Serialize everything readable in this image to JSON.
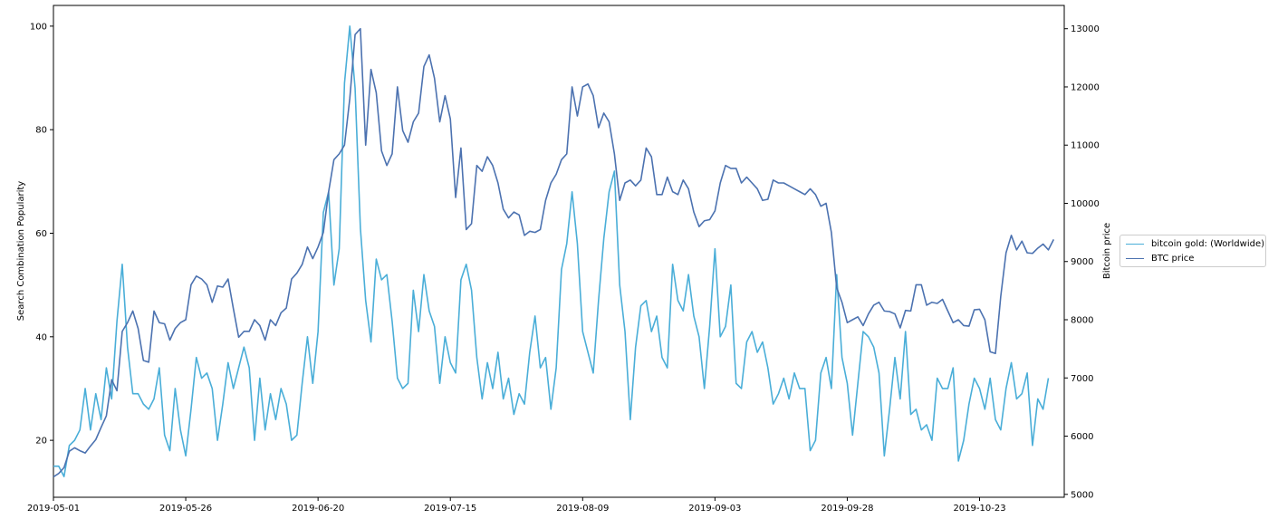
{
  "chart_data": {
    "type": "line",
    "title": "",
    "xlabel": "",
    "ylabel": "Search Combination Popularity",
    "y2label": "Bitcoin price",
    "x_range": [
      "2019-05-01",
      "2019-11-08"
    ],
    "ylim": [
      9,
      104
    ],
    "y2lim": [
      4950,
      13400
    ],
    "x_ticks": [
      "2019-05-01",
      "2019-05-26",
      "2019-06-20",
      "2019-07-15",
      "2019-08-09",
      "2019-09-03",
      "2019-09-28",
      "2019-10-23"
    ],
    "y_ticks": [
      20,
      40,
      60,
      80,
      100
    ],
    "y2_ticks": [
      5000,
      6000,
      7000,
      8000,
      9000,
      10000,
      11000,
      12000,
      13000
    ],
    "legend_placement": "right",
    "grid": false,
    "series": [
      {
        "name": "bitcoin gold: (Worldwide)",
        "axis": "left",
        "color": "#4aaed8",
        "values": [
          15,
          15,
          13,
          19,
          20,
          22,
          30,
          22,
          29,
          24,
          34,
          28,
          43,
          54,
          38,
          29,
          29,
          27,
          26,
          28,
          34,
          21,
          18,
          30,
          22,
          17,
          26,
          36,
          32,
          33,
          30,
          20,
          27,
          35,
          30,
          34,
          38,
          34,
          20,
          32,
          22,
          29,
          24,
          30,
          27,
          20,
          21,
          31,
          40,
          31,
          41,
          64,
          68,
          50,
          57,
          89,
          100,
          88,
          61,
          47,
          39,
          55,
          51,
          52,
          43,
          32,
          30,
          31,
          49,
          41,
          52,
          45,
          42,
          31,
          40,
          35,
          33,
          51,
          54,
          49,
          36,
          28,
          35,
          30,
          37,
          28,
          32,
          25,
          29,
          27,
          37,
          44,
          34,
          36,
          26,
          34,
          53,
          58,
          68,
          58,
          41,
          37,
          33,
          47,
          59,
          68,
          72,
          50,
          41,
          24,
          38,
          46,
          47,
          41,
          44,
          36,
          34,
          54,
          47,
          45,
          52,
          44,
          40,
          30,
          42,
          57,
          40,
          42,
          50,
          31,
          30,
          39,
          41,
          37,
          39,
          34,
          27,
          29,
          32,
          28,
          33,
          30,
          30,
          18,
          20,
          33,
          36,
          30,
          52,
          36,
          31,
          21,
          31,
          41,
          40,
          38,
          33,
          17,
          26,
          36,
          28,
          41,
          25,
          26,
          22,
          23,
          20,
          32,
          30,
          30,
          34,
          16,
          20,
          27,
          32,
          30,
          26,
          32,
          24,
          22,
          30,
          35,
          28,
          29,
          33,
          19,
          28,
          26,
          32
        ],
        "x_step_days": 1
      },
      {
        "name": "BTC price",
        "axis": "right",
        "color": "#4c72b0",
        "values": [
          5300,
          5360,
          5460,
          5740,
          5800,
          5750,
          5710,
          5830,
          5940,
          6150,
          6350,
          6970,
          6780,
          7800,
          7950,
          8150,
          7850,
          7300,
          7270,
          8150,
          7950,
          7930,
          7650,
          7850,
          7950,
          8000,
          8600,
          8750,
          8700,
          8600,
          8300,
          8580,
          8560,
          8700,
          8190,
          7700,
          7800,
          7800,
          8000,
          7900,
          7650,
          8000,
          7900,
          8120,
          8200,
          8700,
          8800,
          8950,
          9250,
          9050,
          9250,
          9500,
          10200,
          10750,
          10850,
          11000,
          11800,
          12900,
          13000,
          11000,
          12300,
          11900,
          10900,
          10650,
          10850,
          12000,
          11250,
          11050,
          11400,
          11550,
          12350,
          12550,
          12150,
          11400,
          11850,
          11450,
          10100,
          10950,
          9550,
          9650,
          10650,
          10550,
          10800,
          10650,
          10350,
          9900,
          9750,
          9850,
          9800,
          9450,
          9520,
          9500,
          9550,
          10050,
          10350,
          10500,
          10750,
          10850,
          12000,
          11500,
          12000,
          12050,
          11850,
          11300,
          11550,
          11400,
          10850,
          10050,
          10350,
          10400,
          10300,
          10400,
          10950,
          10800,
          10150,
          10150,
          10450,
          10200,
          10150,
          10400,
          10250,
          9850,
          9600,
          9700,
          9720,
          9870,
          10350,
          10650,
          10600,
          10600,
          10350,
          10450,
          10350,
          10250,
          10050,
          10070,
          10400,
          10350,
          10350,
          10300,
          10250,
          10200,
          10150,
          10250,
          10150,
          9950,
          10000,
          9500,
          8550,
          8300,
          7950,
          8000,
          8050,
          7900,
          8100,
          8250,
          8300,
          8150,
          8140,
          8100,
          7860,
          8160,
          8150,
          8600,
          8600,
          8250,
          8300,
          8280,
          8350,
          8150,
          7950,
          8000,
          7900,
          7890,
          8170,
          8180,
          8000,
          7450,
          7420,
          8400,
          9150,
          9450,
          9200,
          9350,
          9150,
          9140,
          9230,
          9300,
          9200,
          9380
        ],
        "x_step_days": 1
      }
    ]
  },
  "legend": {
    "items": [
      "bitcoin gold: (Worldwide)",
      "BTC price"
    ]
  }
}
